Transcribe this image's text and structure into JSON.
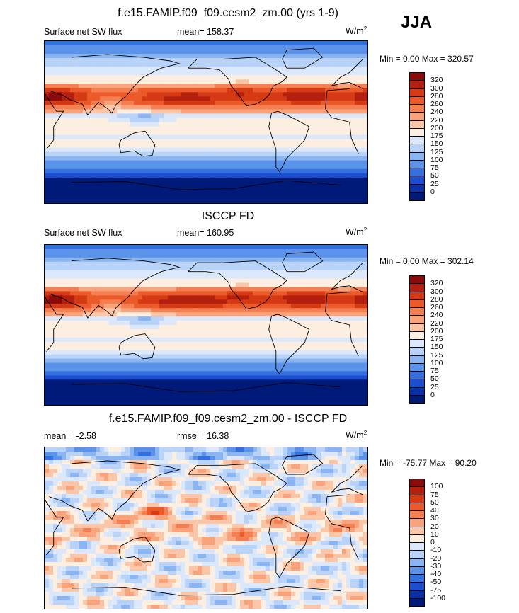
{
  "season": "JJA",
  "panels": [
    {
      "title": "f.e15.FAMIP.f09_f09.cesm2_zm.00 (yrs 1-9)",
      "left": "Surface net SW flux",
      "center": "mean= 158.37",
      "units": "W/m",
      "units_sup": "2",
      "minmax": "Min =   0.00 Max = 320.57"
    },
    {
      "title": "ISCCP FD",
      "left": "Surface net SW flux",
      "center": "mean= 160.95",
      "units": "W/m",
      "units_sup": "2",
      "minmax": "Min =   0.00 Max = 302.14"
    },
    {
      "title": "f.e15.FAMIP.f09_f09.cesm2_zm.00 - ISCCP FD",
      "left": "mean =  -2.58",
      "center": "rmse =  16.38",
      "units": "W/m",
      "units_sup": "2",
      "minmax": "Min = -75.77 Max =  90.20"
    }
  ],
  "chart_data": [
    {
      "type": "heatmap",
      "title": "f.e15.FAMIP.f09_f09.cesm2_zm.00 (yrs 1-9)",
      "variable": "Surface net SW flux",
      "mean": 158.37,
      "min": 0.0,
      "max": 320.57,
      "colorbar_levels": [
        "320",
        "300",
        "280",
        "260",
        "240",
        "220",
        "200",
        "175",
        "150",
        "125",
        "100",
        "75",
        "50",
        "25",
        "0"
      ],
      "colorbar_colors": [
        "#8b0a0a",
        "#b3200f",
        "#d63a14",
        "#ec5a2a",
        "#f47f52",
        "#f8a37c",
        "#fbc6a8",
        "#fdeee2",
        "#dbe8fb",
        "#b8d2f8",
        "#8ab5f2",
        "#5b93ea",
        "#3470e0",
        "#1b4fcf",
        "#0a2fa6",
        "#001a7a"
      ]
    },
    {
      "type": "heatmap",
      "title": "ISCCP FD",
      "variable": "Surface net SW flux",
      "mean": 160.95,
      "min": 0.0,
      "max": 302.14,
      "colorbar_levels": [
        "320",
        "300",
        "280",
        "260",
        "240",
        "220",
        "200",
        "175",
        "150",
        "125",
        "100",
        "75",
        "50",
        "25",
        "0"
      ],
      "colorbar_colors": [
        "#8b0a0a",
        "#b3200f",
        "#d63a14",
        "#ec5a2a",
        "#f47f52",
        "#f8a37c",
        "#fbc6a8",
        "#fdeee2",
        "#dbe8fb",
        "#b8d2f8",
        "#8ab5f2",
        "#5b93ea",
        "#3470e0",
        "#1b4fcf",
        "#0a2fa6",
        "#001a7a"
      ]
    },
    {
      "type": "heatmap",
      "title": "f.e15.FAMIP.f09_f09.cesm2_zm.00 - ISCCP FD",
      "mean": -2.58,
      "rmse": 16.38,
      "min": -75.77,
      "max": 90.2,
      "colorbar_levels": [
        "100",
        "75",
        "50",
        "40",
        "30",
        "20",
        "10",
        "0",
        "-10",
        "-20",
        "-30",
        "-40",
        "-50",
        "-75",
        "-100"
      ],
      "colorbar_colors": [
        "#8b0a0a",
        "#b3200f",
        "#d63a14",
        "#ec5a2a",
        "#f47f52",
        "#f8a37c",
        "#fbc6a8",
        "#fdeee2",
        "#dbe8fb",
        "#b8d2f8",
        "#8ab5f2",
        "#5b93ea",
        "#3470e0",
        "#1b4fcf",
        "#0a2fa6",
        "#001a7a"
      ]
    }
  ]
}
